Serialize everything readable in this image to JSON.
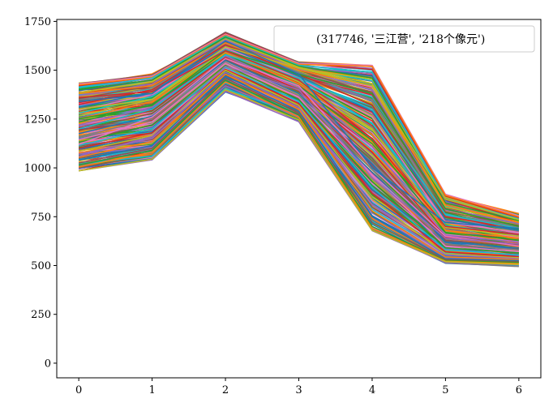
{
  "chart_data": {
    "type": "line",
    "x": [
      0,
      1,
      2,
      3,
      4,
      5,
      6
    ],
    "xlim": [
      -0.3,
      6.3
    ],
    "ylim": [
      -75,
      1760
    ],
    "x_ticks": [
      "0",
      "1",
      "2",
      "3",
      "4",
      "5",
      "6"
    ],
    "y_ticks": [
      "0",
      "250",
      "500",
      "750",
      "1000",
      "1250",
      "1500",
      "1750"
    ],
    "y_tick_values": [
      0,
      250,
      500,
      750,
      1000,
      1250,
      1500,
      1750
    ],
    "grid": false,
    "legend_placement": "top-right",
    "legend_label": "(317746, '三江营', '218个像元')",
    "series_count": 218,
    "envelope": {
      "upper": [
        1430,
        1470,
        1685,
        1535,
        1525,
        865,
        755
      ],
      "lower": [
        985,
        1045,
        1400,
        1245,
        680,
        520,
        505
      ]
    },
    "representative_series": [
      {
        "values": [
          1430,
          1470,
          1685,
          1535,
          1525,
          865,
          755
        ],
        "color": "#e377c2"
      },
      {
        "values": [
          1425,
          1465,
          1680,
          1530,
          1520,
          860,
          750
        ],
        "color": "#ff7f0e"
      },
      {
        "values": [
          1410,
          1460,
          1675,
          1525,
          1490,
          840,
          740
        ],
        "color": "#17becf"
      },
      {
        "values": [
          1400,
          1450,
          1670,
          1520,
          1460,
          820,
          730
        ],
        "color": "#2ca02c"
      },
      {
        "values": [
          1385,
          1440,
          1660,
          1515,
          1430,
          800,
          720
        ],
        "color": "#bcbd22"
      },
      {
        "values": [
          1370,
          1430,
          1655,
          1505,
          1400,
          790,
          715
        ],
        "color": "#9467bd"
      },
      {
        "values": [
          1355,
          1420,
          1645,
          1500,
          1380,
          775,
          705
        ],
        "color": "#8c564b"
      },
      {
        "values": [
          1340,
          1410,
          1640,
          1490,
          1350,
          760,
          700
        ],
        "color": "#7f7f7f"
      },
      {
        "values": [
          1325,
          1400,
          1630,
          1480,
          1320,
          750,
          690
        ],
        "color": "#d62728"
      },
      {
        "values": [
          1310,
          1390,
          1620,
          1470,
          1290,
          735,
          680
        ],
        "color": "#1f77b4"
      },
      {
        "values": [
          1295,
          1375,
          1615,
          1460,
          1260,
          720,
          670
        ],
        "color": "#e377c2"
      },
      {
        "values": [
          1280,
          1365,
          1605,
          1450,
          1230,
          705,
          660
        ],
        "color": "#17becf"
      },
      {
        "values": [
          1265,
          1350,
          1600,
          1440,
          1200,
          695,
          650
        ],
        "color": "#bcbd22"
      },
      {
        "values": [
          1250,
          1340,
          1590,
          1430,
          1170,
          680,
          640
        ],
        "color": "#ff7f0e"
      },
      {
        "values": [
          1235,
          1325,
          1580,
          1420,
          1140,
          670,
          630
        ],
        "color": "#2ca02c"
      },
      {
        "values": [
          1220,
          1310,
          1575,
          1410,
          1110,
          655,
          620
        ],
        "color": "#9467bd"
      },
      {
        "values": [
          1205,
          1295,
          1565,
          1400,
          1080,
          645,
          610
        ],
        "color": "#d62728"
      },
      {
        "values": [
          1190,
          1280,
          1555,
          1390,
          1050,
          630,
          600
        ],
        "color": "#8c564b"
      },
      {
        "values": [
          1175,
          1265,
          1550,
          1380,
          1020,
          620,
          590
        ],
        "color": "#1f77b4"
      },
      {
        "values": [
          1160,
          1250,
          1540,
          1370,
          990,
          610,
          580
        ],
        "color": "#7f7f7f"
      },
      {
        "values": [
          1145,
          1235,
          1535,
          1360,
          960,
          600,
          570
        ],
        "color": "#e377c2"
      },
      {
        "values": [
          1130,
          1220,
          1525,
          1350,
          930,
          590,
          565
        ],
        "color": "#2ca02c"
      },
      {
        "values": [
          1115,
          1200,
          1515,
          1340,
          900,
          580,
          555
        ],
        "color": "#17becf"
      },
      {
        "values": [
          1100,
          1180,
          1505,
          1330,
          870,
          570,
          545
        ],
        "color": "#d62728"
      },
      {
        "values": [
          1085,
          1165,
          1500,
          1320,
          840,
          560,
          540
        ],
        "color": "#bcbd22"
      },
      {
        "values": [
          1070,
          1150,
          1490,
          1310,
          810,
          555,
          535
        ],
        "color": "#9467bd"
      },
      {
        "values": [
          1055,
          1135,
          1480,
          1300,
          780,
          545,
          530
        ],
        "color": "#ff7f0e"
      },
      {
        "values": [
          1040,
          1115,
          1470,
          1290,
          750,
          535,
          525
        ],
        "color": "#1f77b4"
      },
      {
        "values": [
          1025,
          1100,
          1460,
          1280,
          720,
          530,
          520
        ],
        "color": "#8c564b"
      },
      {
        "values": [
          1015,
          1090,
          1450,
          1270,
          700,
          525,
          515
        ],
        "color": "#2ca02c"
      },
      {
        "values": [
          1005,
          1080,
          1440,
          1260,
          690,
          522,
          510
        ],
        "color": "#ff7f0e"
      },
      {
        "values": [
          985,
          1045,
          1400,
          1245,
          680,
          520,
          505
        ],
        "color": "#bcbd22"
      },
      {
        "values": [
          1380,
          1420,
          1640,
          1500,
          1420,
          810,
          720
        ],
        "color": "#ff7f0e"
      },
      {
        "values": [
          1300,
          1350,
          1620,
          1510,
          1420,
          840,
          735
        ],
        "color": "#bcbd22"
      },
      {
        "values": [
          1250,
          1320,
          1600,
          1480,
          1380,
          790,
          700
        ],
        "color": "#2ca02c"
      },
      {
        "values": [
          1200,
          1300,
          1580,
          1460,
          1300,
          760,
          690
        ],
        "color": "#17becf"
      },
      {
        "values": [
          1360,
          1390,
          1600,
          1450,
          1150,
          700,
          660
        ],
        "color": "#d62728"
      },
      {
        "values": [
          1120,
          1260,
          1560,
          1420,
          1000,
          650,
          600
        ],
        "color": "#e377c2"
      },
      {
        "values": [
          1060,
          1160,
          1520,
          1400,
          950,
          640,
          610
        ],
        "color": "#9467bd"
      },
      {
        "values": [
          1340,
          1380,
          1650,
          1480,
          1000,
          720,
          690
        ],
        "color": "#1f77b4"
      }
    ]
  }
}
